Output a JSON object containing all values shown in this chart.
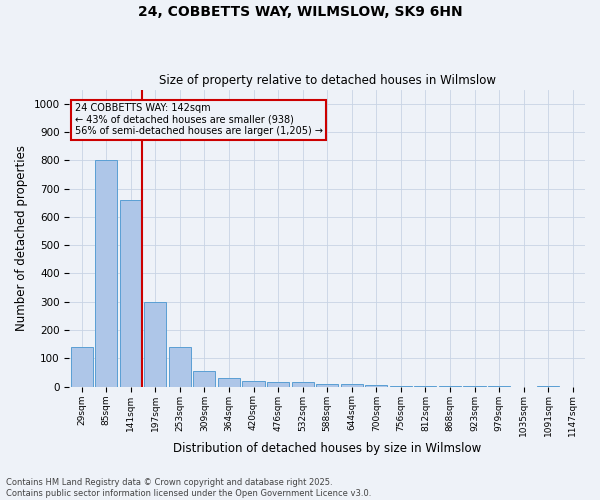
{
  "title1": "24, COBBETTS WAY, WILMSLOW, SK9 6HN",
  "title2": "Size of property relative to detached houses in Wilmslow",
  "xlabel": "Distribution of detached houses by size in Wilmslow",
  "ylabel": "Number of detached properties",
  "categories": [
    "29sqm",
    "85sqm",
    "141sqm",
    "197sqm",
    "253sqm",
    "309sqm",
    "364sqm",
    "420sqm",
    "476sqm",
    "532sqm",
    "588sqm",
    "644sqm",
    "700sqm",
    "756sqm",
    "812sqm",
    "868sqm",
    "923sqm",
    "979sqm",
    "1035sqm",
    "1091sqm",
    "1147sqm"
  ],
  "values": [
    140,
    800,
    660,
    300,
    140,
    55,
    30,
    20,
    15,
    15,
    10,
    8,
    5,
    3,
    2,
    1,
    1,
    1,
    0,
    1,
    0
  ],
  "bar_color": "#aec6e8",
  "bar_edge_color": "#5a9fd4",
  "property_bin_index": 2,
  "property_label": "24 COBBETTS WAY: 142sqm",
  "annotation_line1": "← 43% of detached houses are smaller (938)",
  "annotation_line2": "56% of semi-detached houses are larger (1,205) →",
  "red_line_color": "#cc0000",
  "annotation_box_color": "#cc0000",
  "ylim": [
    0,
    1050
  ],
  "yticks": [
    0,
    100,
    200,
    300,
    400,
    500,
    600,
    700,
    800,
    900,
    1000
  ],
  "footer1": "Contains HM Land Registry data © Crown copyright and database right 2025.",
  "footer2": "Contains public sector information licensed under the Open Government Licence v3.0.",
  "bg_color": "#eef2f8",
  "grid_color": "#c8d4e4"
}
